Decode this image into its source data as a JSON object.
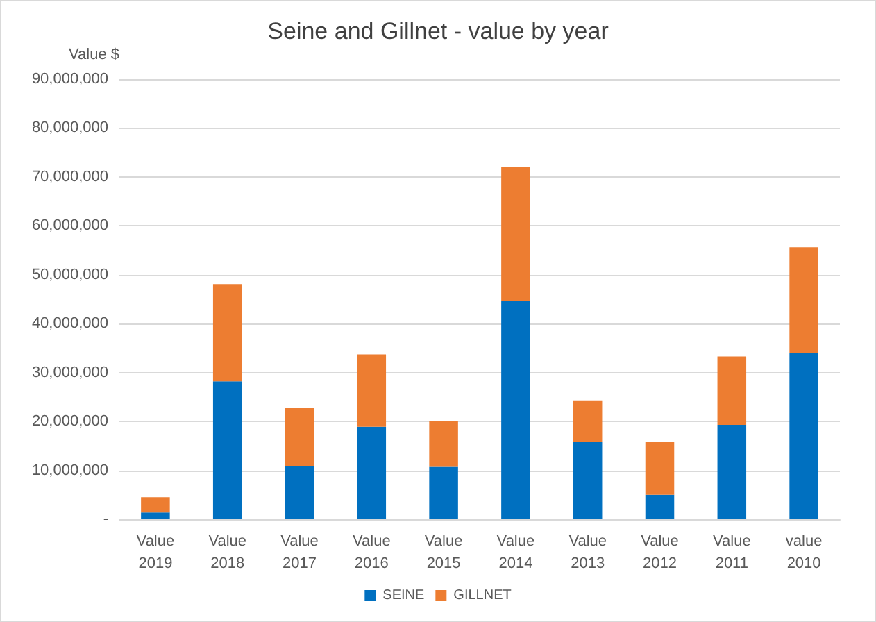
{
  "chart_data": {
    "type": "bar",
    "title": "Seine and Gillnet - value by year",
    "ylabel": "Value $",
    "categories": [
      "Value\n2019",
      "Value\n2018",
      "Value\n2017",
      "Value\n2016",
      "Value\n2015",
      "Value\n2014",
      "Value\n2013",
      "Value\n2012",
      "Value\n2011",
      "value\n2010"
    ],
    "stacked": true,
    "series": [
      {
        "name": "SEINE",
        "color": "#0070c0",
        "values": [
          1400000,
          28200000,
          10800000,
          18900000,
          10700000,
          44600000,
          15900000,
          5000000,
          19300000,
          34000000
        ]
      },
      {
        "name": "GILLNET",
        "color": "#ed7d31",
        "values": [
          3100000,
          19900000,
          11900000,
          14800000,
          9400000,
          27400000,
          8400000,
          10800000,
          14000000,
          21600000
        ]
      }
    ],
    "ylim": [
      0,
      90000000
    ],
    "yticks": [
      {
        "value": 0,
        "label": "-"
      },
      {
        "value": 10000000,
        "label": "10,000,000"
      },
      {
        "value": 20000000,
        "label": "20,000,000"
      },
      {
        "value": 30000000,
        "label": "30,000,000"
      },
      {
        "value": 40000000,
        "label": "40,000,000"
      },
      {
        "value": 50000000,
        "label": "50,000,000"
      },
      {
        "value": 60000000,
        "label": "60,000,000"
      },
      {
        "value": 70000000,
        "label": "70,000,000"
      },
      {
        "value": 80000000,
        "label": "80,000,000"
      },
      {
        "value": 90000000,
        "label": "90,000,000"
      }
    ],
    "grid": "y",
    "legend": "bottom"
  }
}
